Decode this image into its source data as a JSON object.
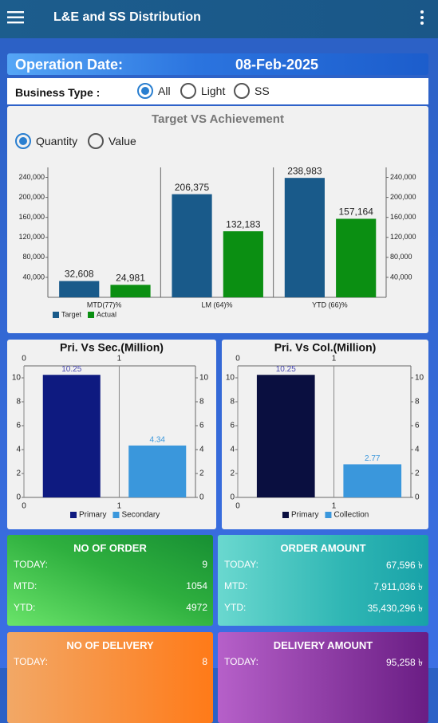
{
  "app_bar": {
    "title": "L&E and SS Distribution"
  },
  "operation_date": {
    "label": "Operation Date:",
    "value": "08-Feb-2025"
  },
  "business_type": {
    "label": "Business Type :",
    "options": [
      "All",
      "Light",
      "SS"
    ],
    "selected": 0
  },
  "chart_data": [
    {
      "type": "bar",
      "title": "Target VS Achievement",
      "measure_options": [
        "Quantity",
        "Value"
      ],
      "measure_selected": 0,
      "categories": [
        "MTD(77)%",
        "LM (64)%",
        "YTD (66)%"
      ],
      "series": [
        {
          "name": "Target",
          "color": "#195a8a",
          "values": [
            32608,
            206375,
            238983
          ],
          "value_labels": [
            "32,608",
            "206,375",
            "238,983"
          ]
        },
        {
          "name": "Actual",
          "color": "#0b8f12",
          "values": [
            24981,
            132183,
            157164
          ],
          "value_labels": [
            "24,981",
            "132,183",
            "157,164"
          ]
        }
      ],
      "ylim": [
        0,
        260000
      ],
      "yticks": [
        {
          "value": 40000,
          "label": "40,000"
        },
        {
          "value": 80000,
          "label": "80,000"
        },
        {
          "value": 120000,
          "label": "120,000"
        },
        {
          "value": 160000,
          "label": "160,000"
        },
        {
          "value": 200000,
          "label": "200,000"
        },
        {
          "value": 240000,
          "label": "240,000"
        }
      ]
    },
    {
      "type": "bar",
      "title": "Pri. Vs Sec.(Million)",
      "series": [
        {
          "name": "Primary",
          "color": "#0e1a80",
          "values": [
            10.25
          ]
        },
        {
          "name": "Secondary",
          "color": "#3a97dc",
          "values": [
            4.34
          ]
        }
      ],
      "xlim": [
        0,
        1.8
      ],
      "xticks": [
        0,
        1
      ],
      "ylim": [
        0,
        11
      ],
      "yticks": [
        0,
        2,
        4,
        6,
        8,
        10
      ]
    },
    {
      "type": "bar",
      "title": "Pri. Vs Col.(Million)",
      "series": [
        {
          "name": "Primary",
          "color": "#0a0f40",
          "values": [
            10.25
          ]
        },
        {
          "name": "Collection",
          "color": "#3a97dc",
          "values": [
            2.77
          ]
        }
      ],
      "xlim": [
        0,
        1.8
      ],
      "xticks": [
        0,
        1
      ],
      "ylim": [
        0,
        11
      ],
      "yticks": [
        0,
        2,
        4,
        6,
        8,
        10
      ]
    }
  ],
  "cards": [
    {
      "title": "NO OF ORDER",
      "rows": [
        {
          "label": "TODAY:",
          "value": "9"
        },
        {
          "label": "MTD:",
          "value": "1054"
        },
        {
          "label": "YTD:",
          "value": "4972"
        }
      ]
    },
    {
      "title": "ORDER AMOUNT",
      "rows": [
        {
          "label": "TODAY:",
          "value": "67,596 ৳"
        },
        {
          "label": "MTD:",
          "value": "7,911,036 ৳"
        },
        {
          "label": "YTD:",
          "value": "35,430,296 ৳"
        }
      ]
    },
    {
      "title": "NO OF DELIVERY",
      "rows": [
        {
          "label": "TODAY:",
          "value": "8"
        }
      ]
    },
    {
      "title": "DELIVERY AMOUNT",
      "rows": [
        {
          "label": "TODAY:",
          "value": "95,258 ৳"
        }
      ]
    }
  ]
}
